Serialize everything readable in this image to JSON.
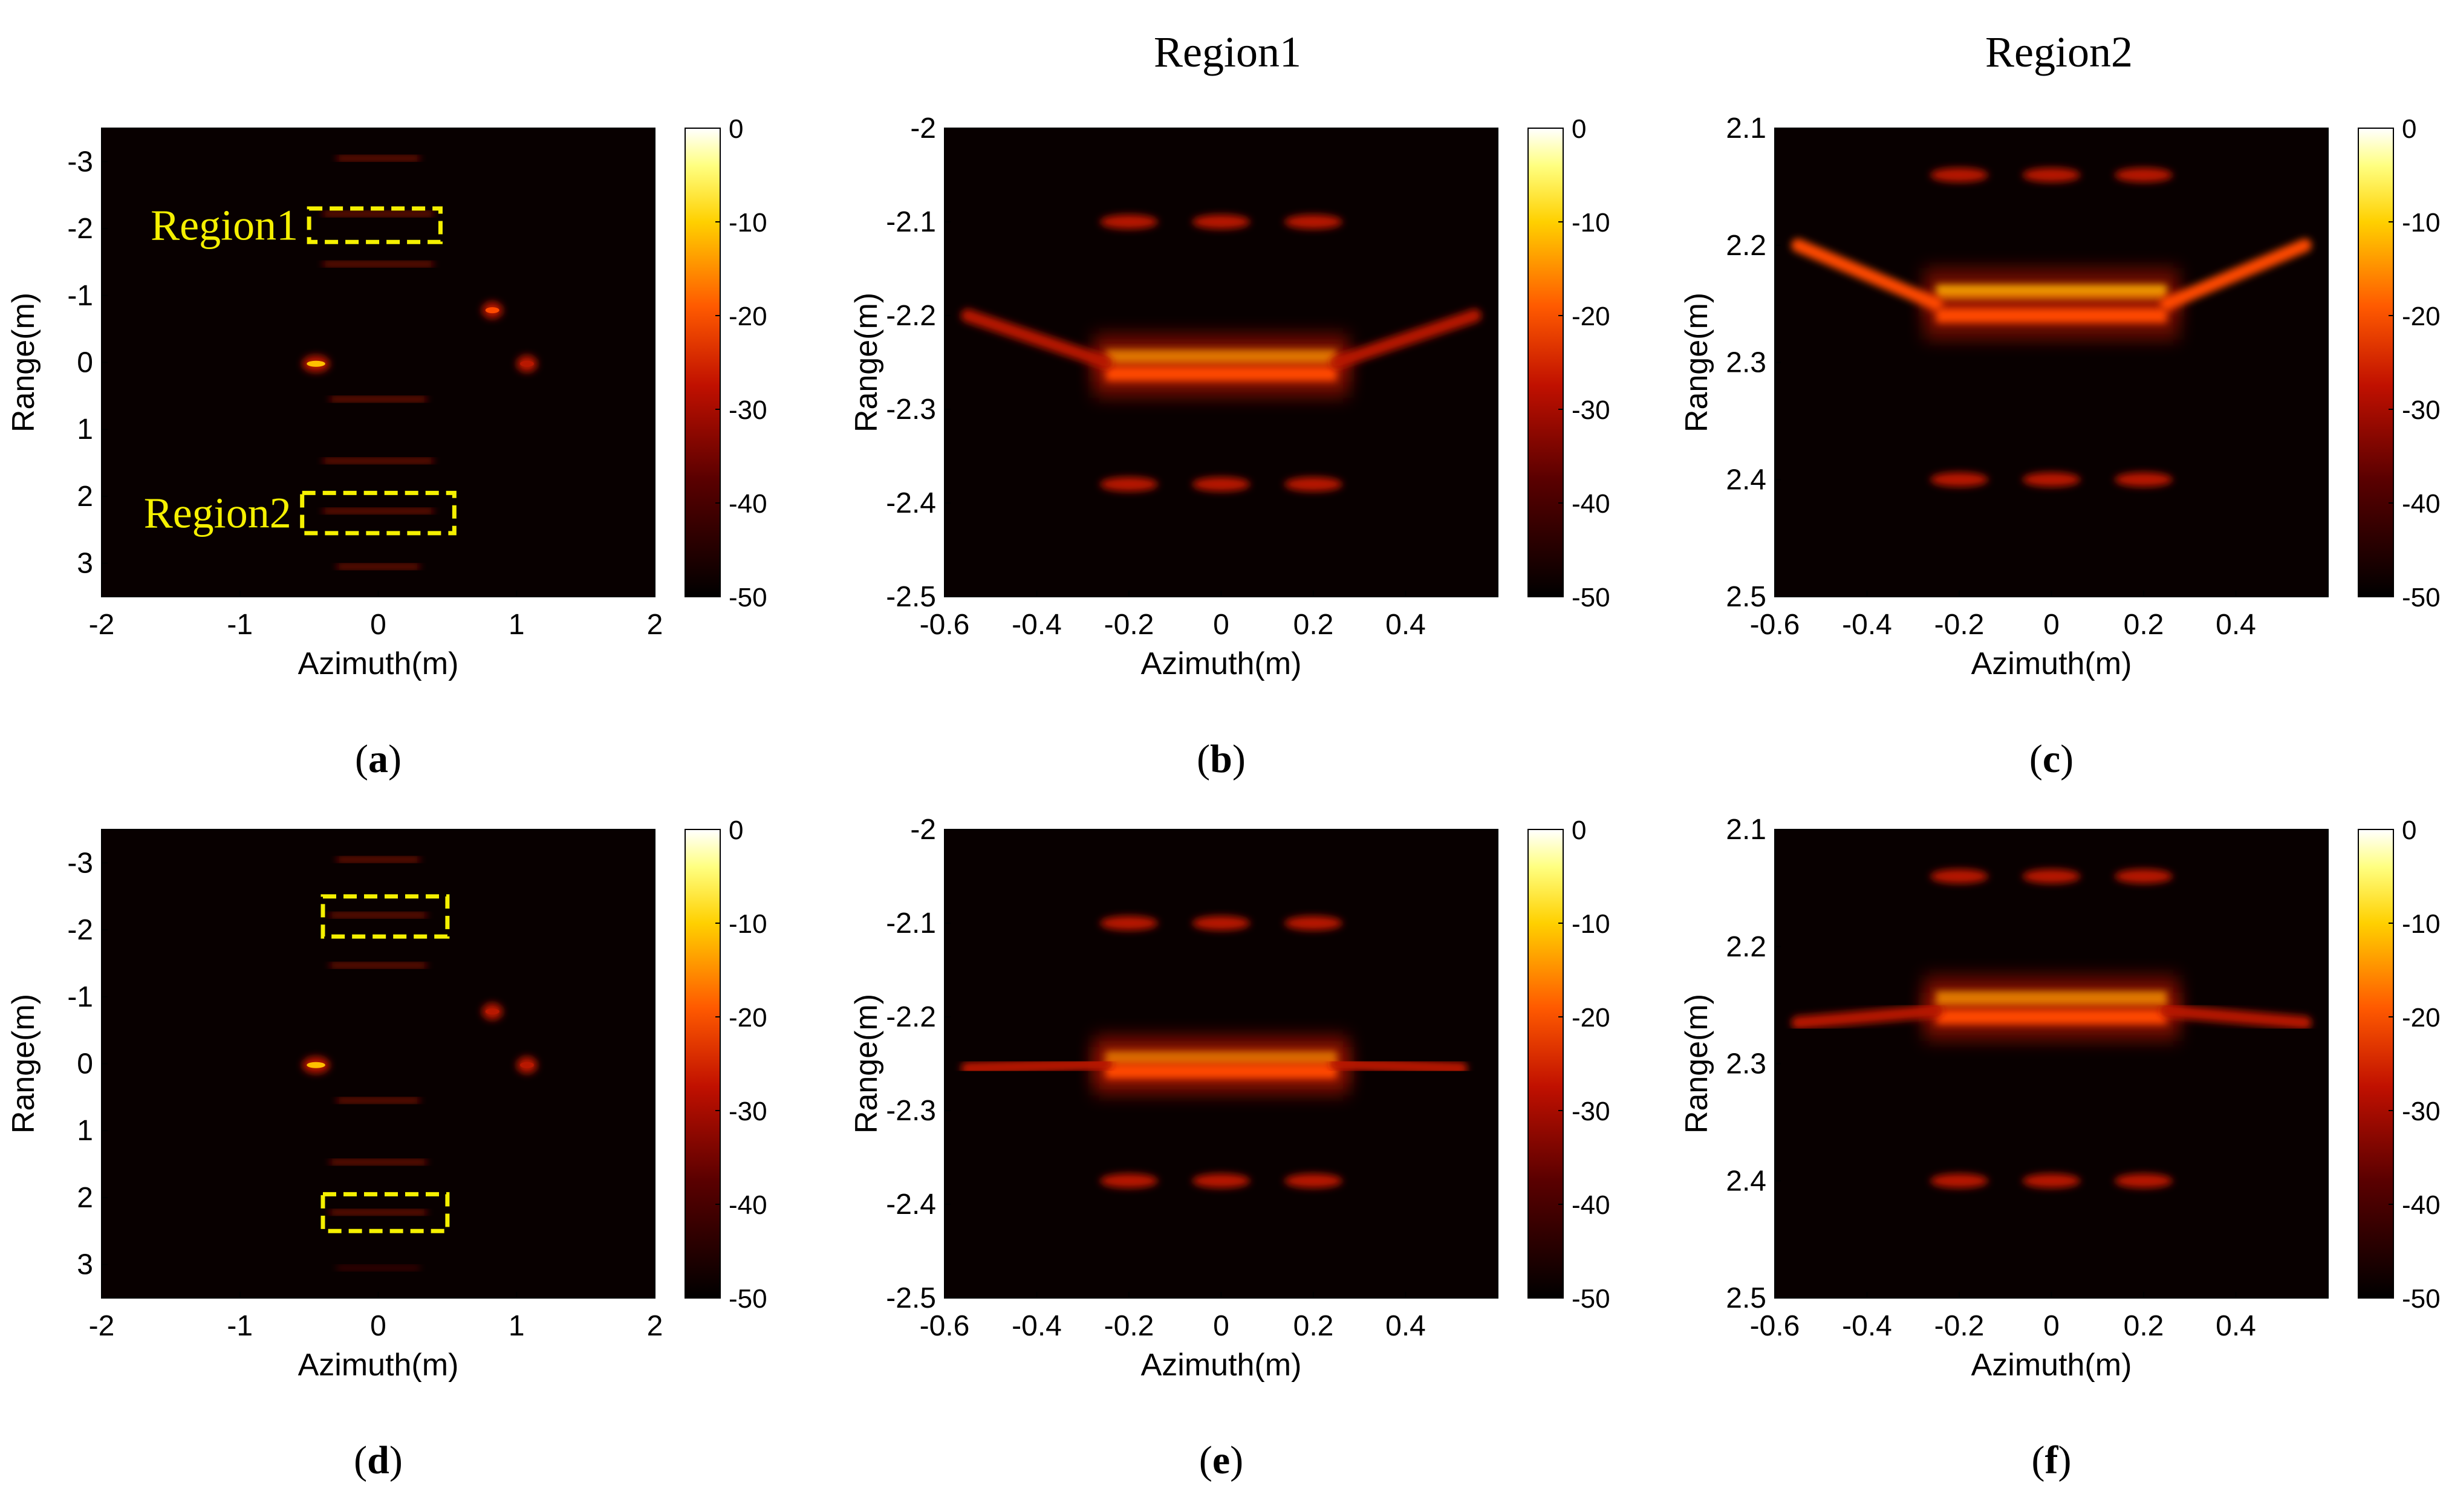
{
  "figure": {
    "column_titles": [
      "Region1",
      "Region2"
    ],
    "colorbar": {
      "ticks": [
        "0",
        "-10",
        "-20",
        "-30",
        "-40",
        "-50"
      ],
      "range_db": [
        -50,
        0
      ]
    },
    "palette": {
      "background": "#ffffff",
      "image_bg": "#080000",
      "dim": "#5a0400",
      "mid": "#b81800",
      "bright": "#ff4a00",
      "hot": "#ffc000",
      "annotation": "#f5f000"
    }
  },
  "chart_data": [
    {
      "type": "heatmap",
      "panel": "(a)",
      "label_letter": "a",
      "xlabel": "Azimuth(m)",
      "ylabel": "Range(m)",
      "xlim": [
        -2,
        2
      ],
      "ylim": [
        -3.5,
        3.5
      ],
      "y_reversed": true,
      "xticks": [
        "-2",
        "-1",
        "0",
        "1",
        "2"
      ],
      "xtick_values": [
        -2,
        -1,
        0,
        1,
        2
      ],
      "yticks": [
        "-3",
        "-2",
        "-1",
        "0",
        "1",
        "2",
        "3"
      ],
      "ytick_values": [
        -3,
        -2,
        -1,
        0,
        1,
        2,
        3
      ],
      "colorbar_label_db": [
        0,
        -10,
        -20,
        -30,
        -40,
        -50
      ],
      "annotations": [
        {
          "text": "Region1",
          "x0": -0.5,
          "x1": 0.45,
          "y0": -2.3,
          "y1": -1.8
        },
        {
          "text": "Region2",
          "x0": -0.55,
          "x1": 0.55,
          "y0": 1.95,
          "y1": 2.55
        }
      ],
      "features": [
        {
          "kind": "line",
          "x0": -0.3,
          "x1": 0.3,
          "y": -3.05,
          "level": 0.55
        },
        {
          "kind": "line",
          "x0": -0.4,
          "x1": 0.4,
          "y": -2.22,
          "level": 0.65
        },
        {
          "kind": "line",
          "x0": -0.4,
          "x1": 0.4,
          "y": -1.47,
          "level": 0.55
        },
        {
          "kind": "line",
          "x0": -0.35,
          "x1": 0.35,
          "y": 0.55,
          "level": 0.55
        },
        {
          "kind": "line",
          "x0": -0.4,
          "x1": 0.4,
          "y": 1.47,
          "level": 0.6
        },
        {
          "kind": "line",
          "x0": -0.4,
          "x1": 0.4,
          "y": 2.22,
          "level": 0.65
        },
        {
          "kind": "line",
          "x0": -0.3,
          "x1": 0.3,
          "y": 3.05,
          "level": 0.5
        },
        {
          "kind": "spot",
          "x0": -0.55,
          "x1": -0.35,
          "y": 0.02,
          "level": 1.0
        },
        {
          "kind": "spot",
          "x0": 0.75,
          "x1": 0.9,
          "y": -0.78,
          "level": 0.75
        },
        {
          "kind": "spot",
          "x0": 1.0,
          "x1": 1.15,
          "y": 0.02,
          "level": 0.6
        }
      ]
    },
    {
      "type": "heatmap",
      "panel": "(b)",
      "label_letter": "b",
      "xlabel": "Azimuth(m)",
      "ylabel": "Range(m)",
      "xlim": [
        -0.6,
        0.6
      ],
      "ylim": [
        -2.5,
        -2.0
      ],
      "y_reversed": false,
      "xticks": [
        "-0.6",
        "-0.4",
        "-0.2",
        "0",
        "0.2",
        "0.4"
      ],
      "xtick_values": [
        -0.6,
        -0.4,
        -0.2,
        0,
        0.2,
        0.4
      ],
      "yticks": [
        "-2.5",
        "-2.4",
        "-2.3",
        "-2.2",
        "-2.1",
        "-2"
      ],
      "ytick_values": [
        -2.5,
        -2.4,
        -2.3,
        -2.2,
        -2.1,
        -2.0
      ],
      "colorbar_label_db": [
        0,
        -10,
        -20,
        -30,
        -40,
        -50
      ],
      "features": [
        {
          "kind": "line",
          "x0": -0.25,
          "x1": 0.25,
          "y": -2.245,
          "level": 1.0
        },
        {
          "kind": "line",
          "x0": -0.25,
          "x1": 0.25,
          "y": -2.262,
          "level": 0.85
        },
        {
          "kind": "wing",
          "x0": -0.25,
          "x1": -0.55,
          "y0": -2.25,
          "y1": -2.2,
          "level": 0.7
        },
        {
          "kind": "wing",
          "x0": 0.25,
          "x1": 0.55,
          "y0": -2.25,
          "y1": -2.2,
          "level": 0.7
        },
        {
          "kind": "blob",
          "x": -0.2,
          "y": -2.38,
          "level": 0.55
        },
        {
          "kind": "blob",
          "x": 0.0,
          "y": -2.38,
          "level": 0.55
        },
        {
          "kind": "blob",
          "x": 0.2,
          "y": -2.38,
          "level": 0.55
        },
        {
          "kind": "blob",
          "x": -0.2,
          "y": -2.1,
          "level": 0.55
        },
        {
          "kind": "blob",
          "x": 0.0,
          "y": -2.1,
          "level": 0.55
        },
        {
          "kind": "blob",
          "x": 0.2,
          "y": -2.1,
          "level": 0.55
        }
      ]
    },
    {
      "type": "heatmap",
      "panel": "(c)",
      "label_letter": "c",
      "xlabel": "Azimuth(m)",
      "ylabel": "Range(m)",
      "xlim": [
        -0.6,
        0.6
      ],
      "ylim": [
        2.1,
        2.5
      ],
      "y_reversed": true,
      "xticks": [
        "-0.6",
        "-0.4",
        "-0.2",
        "0",
        "0.2",
        "0.4"
      ],
      "xtick_values": [
        -0.6,
        -0.4,
        -0.2,
        0,
        0.2,
        0.4
      ],
      "yticks": [
        "2.1",
        "2.2",
        "2.3",
        "2.4",
        "2.5"
      ],
      "ytick_values": [
        2.1,
        2.2,
        2.3,
        2.4,
        2.5
      ],
      "colorbar_label_db": [
        0,
        -10,
        -20,
        -30,
        -40,
        -50
      ],
      "features": [
        {
          "kind": "line",
          "x0": -0.25,
          "x1": 0.25,
          "y": 2.24,
          "level": 1.0
        },
        {
          "kind": "line",
          "x0": -0.25,
          "x1": 0.25,
          "y": 2.26,
          "level": 0.85
        },
        {
          "kind": "wing",
          "x0": -0.25,
          "x1": -0.55,
          "y0": 2.25,
          "y1": 2.2,
          "level": 0.75
        },
        {
          "kind": "wing",
          "x0": 0.25,
          "x1": 0.55,
          "y0": 2.25,
          "y1": 2.2,
          "level": 0.75
        },
        {
          "kind": "blob",
          "x": -0.2,
          "y": 2.14,
          "level": 0.55
        },
        {
          "kind": "blob",
          "x": 0.0,
          "y": 2.14,
          "level": 0.55
        },
        {
          "kind": "blob",
          "x": 0.2,
          "y": 2.14,
          "level": 0.55
        },
        {
          "kind": "blob",
          "x": -0.2,
          "y": 2.4,
          "level": 0.55
        },
        {
          "kind": "blob",
          "x": 0.0,
          "y": 2.4,
          "level": 0.55
        },
        {
          "kind": "blob",
          "x": 0.2,
          "y": 2.4,
          "level": 0.55
        }
      ]
    },
    {
      "type": "heatmap",
      "panel": "(d)",
      "label_letter": "d",
      "xlabel": "Azimuth(m)",
      "ylabel": "Range(m)",
      "xlim": [
        -2,
        2
      ],
      "ylim": [
        -3.5,
        3.5
      ],
      "y_reversed": true,
      "xticks": [
        "-2",
        "-1",
        "0",
        "1",
        "2"
      ],
      "xtick_values": [
        -2,
        -1,
        0,
        1,
        2
      ],
      "yticks": [
        "-3",
        "-2",
        "-1",
        "0",
        "1",
        "2",
        "3"
      ],
      "ytick_values": [
        -3,
        -2,
        -1,
        0,
        1,
        2,
        3
      ],
      "colorbar_label_db": [
        0,
        -10,
        -20,
        -30,
        -40,
        -50
      ],
      "annotations": [
        {
          "text": "",
          "x0": -0.4,
          "x1": 0.5,
          "y0": -2.5,
          "y1": -1.9
        },
        {
          "text": "",
          "x0": -0.4,
          "x1": 0.5,
          "y0": 1.95,
          "y1": 2.5
        }
      ],
      "features": [
        {
          "kind": "line",
          "x0": -0.3,
          "x1": 0.3,
          "y": -3.05,
          "level": 0.5
        },
        {
          "kind": "line",
          "x0": -0.35,
          "x1": 0.35,
          "y": -2.22,
          "level": 0.6
        },
        {
          "kind": "line",
          "x0": -0.35,
          "x1": 0.35,
          "y": -1.47,
          "level": 0.5
        },
        {
          "kind": "line",
          "x0": -0.3,
          "x1": 0.3,
          "y": 0.55,
          "level": 0.5
        },
        {
          "kind": "line",
          "x0": -0.35,
          "x1": 0.35,
          "y": 1.47,
          "level": 0.55
        },
        {
          "kind": "line",
          "x0": -0.35,
          "x1": 0.35,
          "y": 2.22,
          "level": 0.6
        },
        {
          "kind": "line",
          "x0": -0.3,
          "x1": 0.3,
          "y": 3.05,
          "level": 0.45
        },
        {
          "kind": "spot",
          "x0": -0.55,
          "x1": -0.35,
          "y": 0.02,
          "level": 1.0
        },
        {
          "kind": "spot",
          "x0": 0.75,
          "x1": 0.9,
          "y": -0.78,
          "level": 0.6
        },
        {
          "kind": "spot",
          "x0": 1.0,
          "x1": 1.15,
          "y": 0.02,
          "level": 0.5
        }
      ]
    },
    {
      "type": "heatmap",
      "panel": "(e)",
      "label_letter": "e",
      "xlabel": "Azimuth(m)",
      "ylabel": "Range(m)",
      "xlim": [
        -0.6,
        0.6
      ],
      "ylim": [
        -2.5,
        -2.0
      ],
      "y_reversed": false,
      "xticks": [
        "-0.6",
        "-0.4",
        "-0.2",
        "0",
        "0.2",
        "0.4"
      ],
      "xtick_values": [
        -0.6,
        -0.4,
        -0.2,
        0,
        0.2,
        0.4
      ],
      "yticks": [
        "-2.5",
        "-2.4",
        "-2.3",
        "-2.2",
        "-2.1",
        "-2"
      ],
      "ytick_values": [
        -2.5,
        -2.4,
        -2.3,
        -2.2,
        -2.1,
        -2.0
      ],
      "colorbar_label_db": [
        0,
        -10,
        -20,
        -30,
        -40,
        -50
      ],
      "features": [
        {
          "kind": "line",
          "x0": -0.25,
          "x1": 0.25,
          "y": -2.245,
          "level": 1.0
        },
        {
          "kind": "line",
          "x0": -0.25,
          "x1": 0.25,
          "y": -2.258,
          "level": 0.85
        },
        {
          "kind": "wing",
          "x0": -0.25,
          "x1": -0.55,
          "y0": -2.25,
          "y1": -2.255,
          "level": 0.7
        },
        {
          "kind": "wing",
          "x0": 0.25,
          "x1": 0.52,
          "y0": -2.25,
          "y1": -2.255,
          "level": 0.7
        },
        {
          "kind": "blob",
          "x": -0.2,
          "y": -2.375,
          "level": 0.5
        },
        {
          "kind": "blob",
          "x": 0.0,
          "y": -2.375,
          "level": 0.5
        },
        {
          "kind": "blob",
          "x": 0.2,
          "y": -2.375,
          "level": 0.5
        },
        {
          "kind": "blob",
          "x": -0.2,
          "y": -2.1,
          "level": 0.5
        },
        {
          "kind": "blob",
          "x": 0.0,
          "y": -2.1,
          "level": 0.5
        },
        {
          "kind": "blob",
          "x": 0.2,
          "y": -2.1,
          "level": 0.5
        }
      ]
    },
    {
      "type": "heatmap",
      "panel": "(f)",
      "label_letter": "f",
      "xlabel": "Azimuth(m)",
      "ylabel": "Range(m)",
      "xlim": [
        -0.6,
        0.6
      ],
      "ylim": [
        2.1,
        2.5
      ],
      "y_reversed": true,
      "xticks": [
        "-0.6",
        "-0.4",
        "-0.2",
        "0",
        "0.2",
        "0.4"
      ],
      "xtick_values": [
        -0.6,
        -0.4,
        -0.2,
        0,
        0.2,
        0.4
      ],
      "yticks": [
        "2.1",
        "2.2",
        "2.3",
        "2.4",
        "2.5"
      ],
      "ytick_values": [
        2.1,
        2.2,
        2.3,
        2.4,
        2.5
      ],
      "colorbar_label_db": [
        0,
        -10,
        -20,
        -30,
        -40,
        -50
      ],
      "features": [
        {
          "kind": "line",
          "x0": -0.25,
          "x1": 0.25,
          "y": 2.245,
          "level": 1.0
        },
        {
          "kind": "line",
          "x0": -0.25,
          "x1": 0.25,
          "y": 2.26,
          "level": 0.85
        },
        {
          "kind": "wing",
          "x0": -0.25,
          "x1": -0.55,
          "y0": 2.255,
          "y1": 2.265,
          "level": 0.7
        },
        {
          "kind": "wing",
          "x0": 0.25,
          "x1": 0.55,
          "y0": 2.255,
          "y1": 2.265,
          "level": 0.7
        },
        {
          "kind": "blob",
          "x": -0.2,
          "y": 2.14,
          "level": 0.5
        },
        {
          "kind": "blob",
          "x": 0.0,
          "y": 2.14,
          "level": 0.5
        },
        {
          "kind": "blob",
          "x": 0.2,
          "y": 2.14,
          "level": 0.5
        },
        {
          "kind": "blob",
          "x": -0.2,
          "y": 2.4,
          "level": 0.5
        },
        {
          "kind": "blob",
          "x": 0.0,
          "y": 2.4,
          "level": 0.5
        },
        {
          "kind": "blob",
          "x": 0.2,
          "y": 2.4,
          "level": 0.5
        }
      ]
    }
  ]
}
